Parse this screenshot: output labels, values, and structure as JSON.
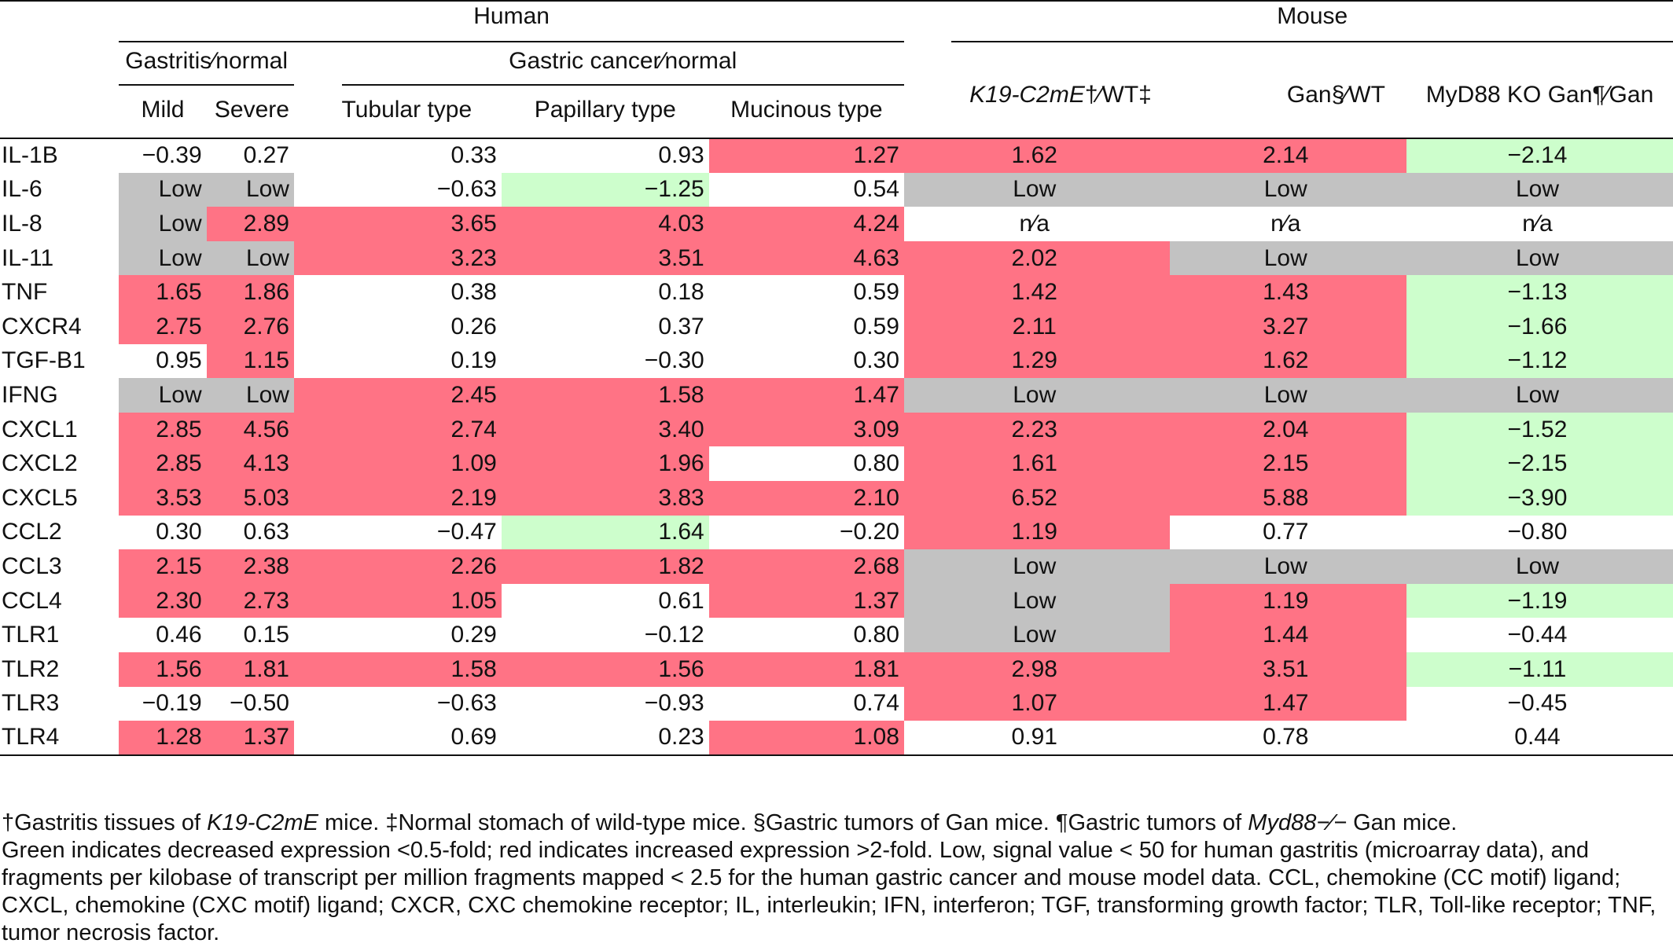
{
  "header": {
    "human": "Human",
    "mouse": "Mouse",
    "gastritis_group": "Gastritis∕normal",
    "cancer_group": "Gastric cancer∕normal",
    "cols": {
      "mild": "Mild",
      "severe": "Severe",
      "tubular": "Tubular type",
      "papillary": "Papillary type",
      "mucinous": "Mucinous type",
      "k19_italic": "K19-C2mE",
      "k19_rest": "†∕WT‡",
      "gan": "Gan§∕WT",
      "myd88": "MyD88 KO Gan¶∕Gan"
    }
  },
  "rows": [
    {
      "gene": "IL-1B",
      "v": [
        "−0.39",
        "0.27",
        "0.33",
        "0.93",
        "1.27",
        "1.62",
        "2.14",
        "−2.14"
      ],
      "c": [
        "n",
        "n",
        "n",
        "n",
        "r",
        "r",
        "r",
        "g"
      ]
    },
    {
      "gene": "IL-6",
      "v": [
        "Low",
        "Low",
        "−0.63",
        "−1.25",
        "0.54",
        "Low",
        "Low",
        "Low"
      ],
      "c": [
        "x",
        "x",
        "n",
        "g",
        "n",
        "x",
        "x",
        "x"
      ]
    },
    {
      "gene": "IL-8",
      "v": [
        "Low",
        "2.89",
        "3.65",
        "4.03",
        "4.24",
        "n∕a",
        "n∕a",
        "n∕a"
      ],
      "c": [
        "x",
        "r",
        "r",
        "r",
        "r",
        "n",
        "n",
        "n"
      ]
    },
    {
      "gene": "IL-11",
      "v": [
        "Low",
        "Low",
        "3.23",
        "3.51",
        "4.63",
        "2.02",
        "Low",
        "Low"
      ],
      "c": [
        "x",
        "x",
        "r",
        "r",
        "r",
        "r",
        "x",
        "x"
      ]
    },
    {
      "gene": "TNF",
      "v": [
        "1.65",
        "1.86",
        "0.38",
        "0.18",
        "0.59",
        "1.42",
        "1.43",
        "−1.13"
      ],
      "c": [
        "r",
        "r",
        "n",
        "n",
        "n",
        "r",
        "r",
        "g"
      ]
    },
    {
      "gene": "CXCR4",
      "v": [
        "2.75",
        "2.76",
        "0.26",
        "0.37",
        "0.59",
        "2.11",
        "3.27",
        "−1.66"
      ],
      "c": [
        "r",
        "r",
        "n",
        "n",
        "n",
        "r",
        "r",
        "g"
      ]
    },
    {
      "gene": "TGF-B1",
      "v": [
        "0.95",
        "1.15",
        "0.19",
        "−0.30",
        "0.30",
        "1.29",
        "1.62",
        "−1.12"
      ],
      "c": [
        "n",
        "r",
        "n",
        "n",
        "n",
        "r",
        "r",
        "g"
      ]
    },
    {
      "gene": "IFNG",
      "v": [
        "Low",
        "Low",
        "2.45",
        "1.58",
        "1.47",
        "Low",
        "Low",
        "Low"
      ],
      "c": [
        "x",
        "x",
        "r",
        "r",
        "r",
        "x",
        "x",
        "x"
      ]
    },
    {
      "gene": "CXCL1",
      "v": [
        "2.85",
        "4.56",
        "2.74",
        "3.40",
        "3.09",
        "2.23",
        "2.04",
        "−1.52"
      ],
      "c": [
        "r",
        "r",
        "r",
        "r",
        "r",
        "r",
        "r",
        "g"
      ]
    },
    {
      "gene": "CXCL2",
      "v": [
        "2.85",
        "4.13",
        "1.09",
        "1.96",
        "0.80",
        "1.61",
        "2.15",
        "−2.15"
      ],
      "c": [
        "r",
        "r",
        "r",
        "r",
        "n",
        "r",
        "r",
        "g"
      ]
    },
    {
      "gene": "CXCL5",
      "v": [
        "3.53",
        "5.03",
        "2.19",
        "3.83",
        "2.10",
        "6.52",
        "5.88",
        "−3.90"
      ],
      "c": [
        "r",
        "r",
        "r",
        "r",
        "r",
        "r",
        "r",
        "g"
      ]
    },
    {
      "gene": "CCL2",
      "v": [
        "0.30",
        "0.63",
        "−0.47",
        "1.64",
        "−0.20",
        "1.19",
        "0.77",
        "−0.80"
      ],
      "c": [
        "n",
        "n",
        "n",
        "g",
        "n",
        "r",
        "n",
        "n"
      ]
    },
    {
      "gene": "CCL3",
      "v": [
        "2.15",
        "2.38",
        "2.26",
        "1.82",
        "2.68",
        "Low",
        "Low",
        "Low"
      ],
      "c": [
        "r",
        "r",
        "r",
        "r",
        "r",
        "x",
        "x",
        "x"
      ]
    },
    {
      "gene": "CCL4",
      "v": [
        "2.30",
        "2.73",
        "1.05",
        "0.61",
        "1.37",
        "Low",
        "1.19",
        "−1.19"
      ],
      "c": [
        "r",
        "r",
        "r",
        "n",
        "r",
        "x",
        "r",
        "g"
      ]
    },
    {
      "gene": "TLR1",
      "v": [
        "0.46",
        "0.15",
        "0.29",
        "−0.12",
        "0.80",
        "Low",
        "1.44",
        "−0.44"
      ],
      "c": [
        "n",
        "n",
        "n",
        "n",
        "n",
        "x",
        "r",
        "n"
      ]
    },
    {
      "gene": "TLR2",
      "v": [
        "1.56",
        "1.81",
        "1.58",
        "1.56",
        "1.81",
        "2.98",
        "3.51",
        "−1.11"
      ],
      "c": [
        "r",
        "r",
        "r",
        "r",
        "r",
        "r",
        "r",
        "g"
      ]
    },
    {
      "gene": "TLR3",
      "v": [
        "−0.19",
        "−0.50",
        "−0.63",
        "−0.93",
        "0.74",
        "1.07",
        "1.47",
        "−0.45"
      ],
      "c": [
        "n",
        "n",
        "n",
        "n",
        "n",
        "r",
        "r",
        "n"
      ]
    },
    {
      "gene": "TLR4",
      "v": [
        "1.28",
        "1.37",
        "0.69",
        "0.23",
        "1.08",
        "0.91",
        "0.78",
        "0.44"
      ],
      "c": [
        "r",
        "r",
        "n",
        "n",
        "r",
        "n",
        "n",
        "n"
      ]
    }
  ],
  "footnote": {
    "p1_a": "†Gastritis tissues of ",
    "p1_b": "K19-C2mE",
    "p1_c": " mice. ‡Normal stomach of wild-type mice. §Gastric tumors of Gan mice. ¶Gastric tumors of ",
    "p1_d": "Myd88−∕−",
    "p1_e": " Gan mice.",
    "p2": "Green indicates decreased expression <0.5-fold; red indicates increased expression >2-fold. Low, signal value < 50 for human gastritis (microarray data), and fragments per kilobase of transcript per million fragments mapped < 2.5 for the human gastric cancer and mouse model data. CCL, chemokine (CC motif) ligand; CXCL, chemokine (CXC motif) ligand; CXCR, CXC chemokine receptor; IL, interleukin; IFN, interferon; TGF, transforming growth factor; TLR, Toll-like receptor; TNF, tumor necrosis factor."
  }
}
